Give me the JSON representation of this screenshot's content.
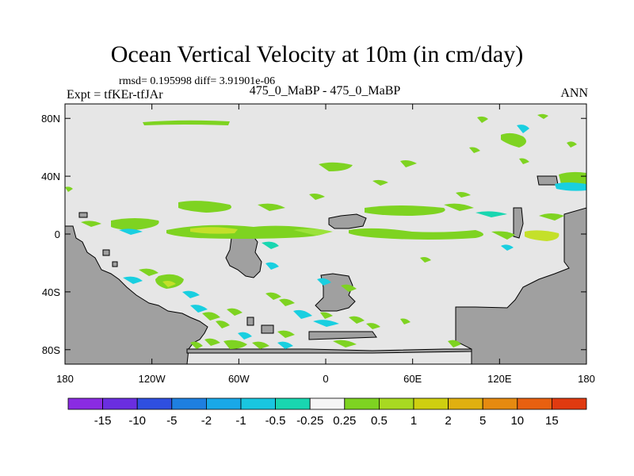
{
  "header": {
    "title": "Ocean Vertical Velocity at 10m (in cm/day)",
    "stats": "rmsd= 0.195998 diff= 3.91901e-06",
    "expt": "Expt = tfKEr-tfJAr",
    "center_label": "475_0_MaBP - 475_0_MaBP",
    "season": "ANN"
  },
  "colors": {
    "background_field": "#e6e6e6",
    "land": "#a0a0a0",
    "green": "#7ed321",
    "light_green": "#9be23a",
    "yellow_green": "#c4e02a",
    "cyan": "#19cfe0",
    "teal": "#19d6b0"
  },
  "chart_data": {
    "type": "heatmap",
    "title": "Ocean Vertical Velocity at 10m (in cm/day)",
    "x_ticks": [
      "180",
      "120W",
      "60W",
      "0",
      "60E",
      "120E",
      "180"
    ],
    "y_ticks": [
      "80N",
      "40N",
      "0",
      "40S",
      "80S"
    ],
    "xlim": [
      -180,
      180
    ],
    "ylim": [
      -90,
      90
    ],
    "colorbar": {
      "labels": [
        "-15",
        "-10",
        "-5",
        "-2",
        "-1",
        "-0.5",
        "-0.25",
        "0.25",
        "0.5",
        "1",
        "2",
        "5",
        "10",
        "15"
      ],
      "colors": [
        "#8a2be2",
        "#6a2ee0",
        "#2f4fe0",
        "#1e7fe0",
        "#19a8e8",
        "#19c6e0",
        "#19d6b0",
        "#f5f5f5",
        "#7ed321",
        "#a8d921",
        "#cfcf10",
        "#e0b010",
        "#e68a10",
        "#e86010",
        "#e03a10"
      ]
    }
  }
}
